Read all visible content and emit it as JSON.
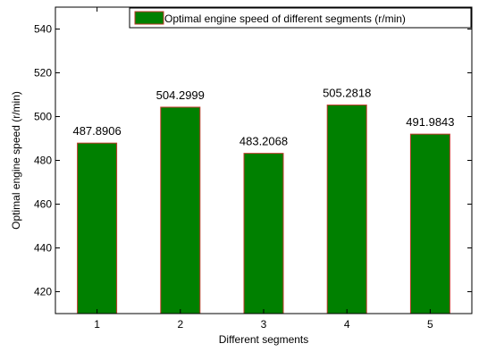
{
  "chart_data": {
    "type": "bar",
    "categories": [
      "1",
      "2",
      "3",
      "4",
      "5"
    ],
    "series": [
      {
        "name": "Optimal engine speed of different segments (r/min)",
        "values": [
          487.8906,
          504.2999,
          483.2068,
          505.2818,
          491.9843
        ],
        "labels": [
          "487.8906",
          "504.2999",
          "483.2068",
          "505.2818",
          "491.9843"
        ]
      }
    ],
    "xlabel": "Different segments",
    "ylabel": "Optimal engine speed (r/min)",
    "ylim": [
      410,
      550
    ],
    "yticks": [
      420,
      440,
      460,
      480,
      500,
      520,
      540
    ],
    "grid": false,
    "legend": "top-right",
    "colors": {
      "bar_fill": "#008000",
      "bar_edge": "#c0392b"
    }
  }
}
